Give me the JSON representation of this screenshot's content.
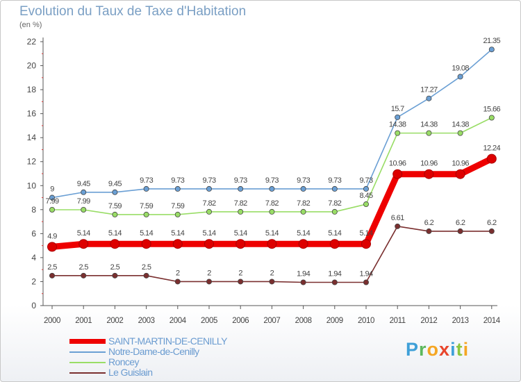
{
  "chart_data": {
    "type": "line",
    "title": "Evolution du Taux de Taxe d'Habitation",
    "subtitle": "(en %)",
    "categories": [
      "2000",
      "2001",
      "2002",
      "2003",
      "2004",
      "2005",
      "2006",
      "2007",
      "2008",
      "2009",
      "2010",
      "2011",
      "2012",
      "2013",
      "2014"
    ],
    "ylim": [
      0,
      22
    ],
    "yticks": [
      0,
      2,
      4,
      6,
      8,
      10,
      12,
      14,
      16,
      18,
      20,
      22
    ],
    "grid": false,
    "legend_placement": "bottom-left",
    "series": [
      {
        "name": "SAINT-MARTIN-DE-CENILLY",
        "color": "#ee0000",
        "emphasis": true,
        "values": [
          4.9,
          5.14,
          5.14,
          5.14,
          5.14,
          5.14,
          5.14,
          5.14,
          5.14,
          5.14,
          5.14,
          10.96,
          10.96,
          10.96,
          12.24
        ],
        "labels": [
          "4.9",
          "5.14",
          "5.14",
          "5.14",
          "5.14",
          "5.14",
          "5.14",
          "5.14",
          "5.14",
          "5.14",
          "5.14",
          "10.96",
          "10.96",
          "10.96",
          "12.24"
        ]
      },
      {
        "name": "Notre-Dame-de-Cenilly",
        "color": "#6a9fd4",
        "emphasis": false,
        "values": [
          9,
          9.45,
          9.45,
          9.73,
          9.73,
          9.73,
          9.73,
          9.73,
          9.73,
          9.73,
          9.73,
          15.7,
          17.27,
          19.08,
          21.35
        ],
        "labels": [
          "9",
          "9.45",
          "9.45",
          "9.73",
          "9.73",
          "9.73",
          "9.73",
          "9.73",
          "9.73",
          "9.73",
          "9.73",
          "15.7",
          "17.27",
          "19.08",
          "21.35"
        ]
      },
      {
        "name": "Roncey",
        "color": "#99dd66",
        "emphasis": false,
        "values": [
          7.99,
          7.99,
          7.59,
          7.59,
          7.59,
          7.82,
          7.82,
          7.82,
          7.82,
          7.82,
          8.45,
          14.38,
          14.38,
          14.38,
          15.66
        ],
        "labels": [
          "7.99",
          "7.99",
          "7.59",
          "7.59",
          "7.59",
          "7.82",
          "7.82",
          "7.82",
          "7.82",
          "7.82",
          "8.45",
          "14.38",
          "14.38",
          "14.38",
          "15.66"
        ]
      },
      {
        "name": "Le Guislain",
        "color": "#7a2f2f",
        "emphasis": false,
        "values": [
          2.5,
          2.5,
          2.5,
          2.5,
          2,
          2,
          2,
          2,
          1.94,
          1.94,
          1.94,
          6.61,
          6.2,
          6.2,
          6.2
        ],
        "labels": [
          "2.5",
          "2.5",
          "2.5",
          "2.5",
          "2",
          "2",
          "2",
          "2",
          "1.94",
          "1.94",
          "1.94",
          "6.61",
          "6.2",
          "6.2",
          "6.2"
        ]
      }
    ]
  },
  "logo": {
    "letters": [
      "P",
      "r",
      "o",
      "x",
      "i",
      "t",
      "i"
    ]
  }
}
